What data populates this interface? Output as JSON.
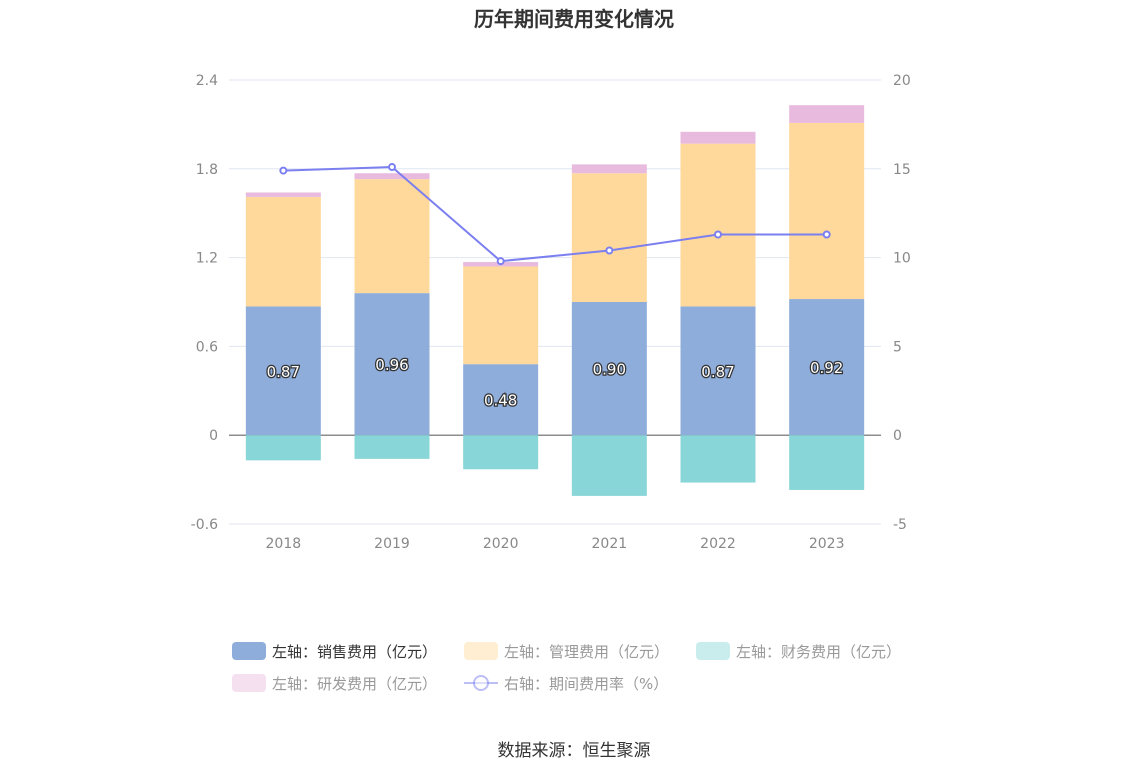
{
  "chart_data": {
    "type": "bar",
    "stacked": true,
    "title": "历年期间费用变化情况",
    "categories": [
      "2018",
      "2019",
      "2020",
      "2021",
      "2022",
      "2023"
    ],
    "series": [
      {
        "name": "左轴：销售费用（亿元）",
        "axis": "left",
        "type": "bar",
        "color": "#8EADDB",
        "values": [
          0.87,
          0.96,
          0.48,
          0.9,
          0.87,
          0.92
        ],
        "labels": [
          "0.87",
          "0.96",
          "0.48",
          "0.90",
          "0.87",
          "0.92"
        ]
      },
      {
        "name": "左轴：管理费用（亿元）",
        "axis": "left",
        "type": "bar",
        "color": "#FFD99B",
        "values": [
          0.74,
          0.77,
          0.66,
          0.87,
          1.1,
          1.19
        ]
      },
      {
        "name": "左轴：财务费用（亿元）",
        "axis": "left",
        "type": "bar",
        "color": "#88D6D8",
        "values": [
          -0.17,
          -0.16,
          -0.23,
          -0.41,
          -0.32,
          -0.37
        ]
      },
      {
        "name": "左轴：研发费用（亿元）",
        "axis": "left",
        "type": "bar",
        "color": "#E8BBDE",
        "values": [
          0.03,
          0.04,
          0.03,
          0.06,
          0.08,
          0.12
        ]
      },
      {
        "name": "右轴：期间费用率（%）",
        "axis": "right",
        "type": "line",
        "color": "#7B7FEF",
        "values": [
          14.9,
          15.1,
          9.8,
          10.4,
          11.3,
          11.3
        ]
      }
    ],
    "y_left": {
      "ticks": [
        "2.4",
        "1.8",
        "1.2",
        "0.6",
        "0",
        "-0.6"
      ],
      "range": [
        -0.6,
        2.4
      ]
    },
    "y_right": {
      "ticks": [
        "20",
        "15",
        "10",
        "5",
        "0",
        "-5"
      ],
      "range": [
        -5,
        20
      ]
    },
    "grid": true,
    "legend_placement": "bottom"
  },
  "source": "数据来源：恒生聚源"
}
